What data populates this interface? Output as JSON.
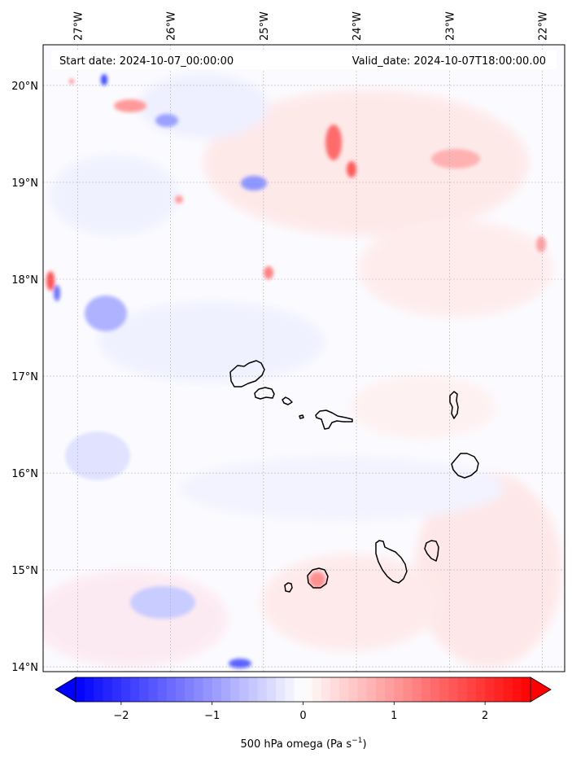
{
  "header": {
    "start_date": "Start date: 2024-10-07_00:00:00",
    "valid_date": "Valid_date: 2024-10-07T18:00:00.00"
  },
  "map": {
    "lon_ticks": [
      "27°W",
      "26°W",
      "25°W",
      "24°W",
      "23°W",
      "22°W"
    ],
    "lat_ticks": [
      "20°N",
      "19°N",
      "18°N",
      "17°N",
      "16°N",
      "15°N",
      "14°N"
    ],
    "lon_values": [
      -27,
      -26,
      -25,
      -24,
      -23,
      -22
    ],
    "lat_values": [
      20,
      19,
      18,
      17,
      16,
      15,
      14
    ],
    "lon_range": [
      -27.37,
      -21.76
    ],
    "lat_range": [
      13.95,
      20.42
    ],
    "gridlines": true
  },
  "colorbar": {
    "ticks": [
      "−2",
      "−1",
      "0",
      "1",
      "2"
    ],
    "tick_values": [
      -2,
      -1,
      0,
      1,
      2
    ],
    "range": [
      -2.5,
      2.5
    ],
    "colormap": "bwr",
    "extend": "both",
    "label_main": "500 hPa omega (Pa s",
    "label_exp": "−1",
    "label_close": ")"
  },
  "colors": {
    "min": "#0000ff",
    "mid": "#ffffff",
    "max": "#ff0000",
    "coastline": "#000000"
  }
}
